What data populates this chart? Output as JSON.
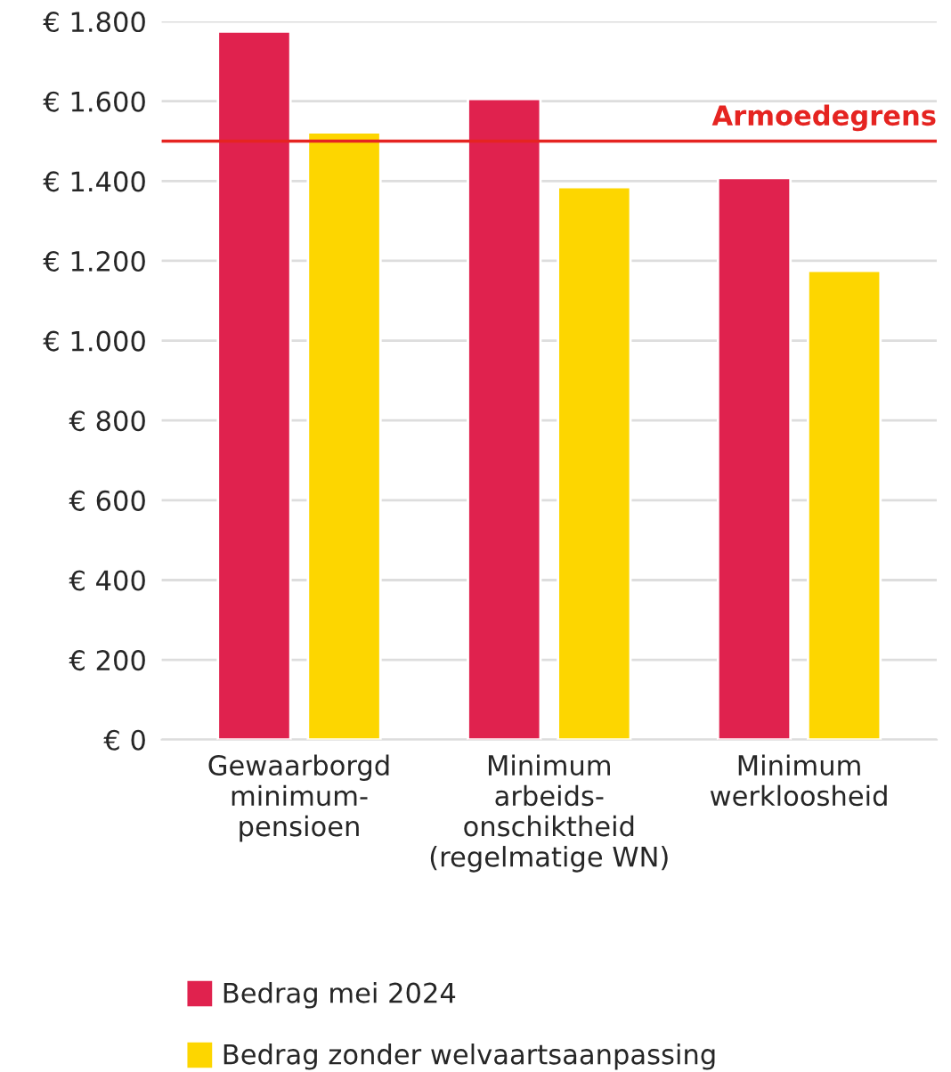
{
  "chart_data": {
    "type": "bar",
    "categories": [
      "Gewaarborgd\nminimum-\npensioen",
      "Minimum\narbeids-\nonschiktheid\n(regelmatige WN)",
      "Minimum\nwerkloosheid"
    ],
    "series": [
      {
        "name": "Bedrag mei 2024",
        "color": "#e0224e",
        "values": [
          1775,
          1606,
          1408
        ]
      },
      {
        "name": "Bedrag zonder welvaartsaanpassing",
        "color": "#fdd600",
        "values": [
          1522,
          1385,
          1175
        ]
      }
    ],
    "ylim": [
      0,
      1800
    ],
    "yticks": [
      {
        "value": 0,
        "label": "€ 0"
      },
      {
        "value": 200,
        "label": "€ 200"
      },
      {
        "value": 400,
        "label": "€ 400"
      },
      {
        "value": 600,
        "label": "€ 600"
      },
      {
        "value": 800,
        "label": "€ 800"
      },
      {
        "value": 1000,
        "label": "€ 1.000"
      },
      {
        "value": 1200,
        "label": "€ 1.200"
      },
      {
        "value": 1400,
        "label": "€ 1.400"
      },
      {
        "value": 1600,
        "label": "€ 1.600"
      },
      {
        "value": 1800,
        "label": "€ 1.800"
      }
    ],
    "ref_lines": [
      {
        "axis": "y",
        "value": 1500,
        "label": "Armoedegrens",
        "color": "#e52421",
        "line_style": "solid"
      }
    ],
    "grid": "y",
    "legend": "bottom"
  }
}
